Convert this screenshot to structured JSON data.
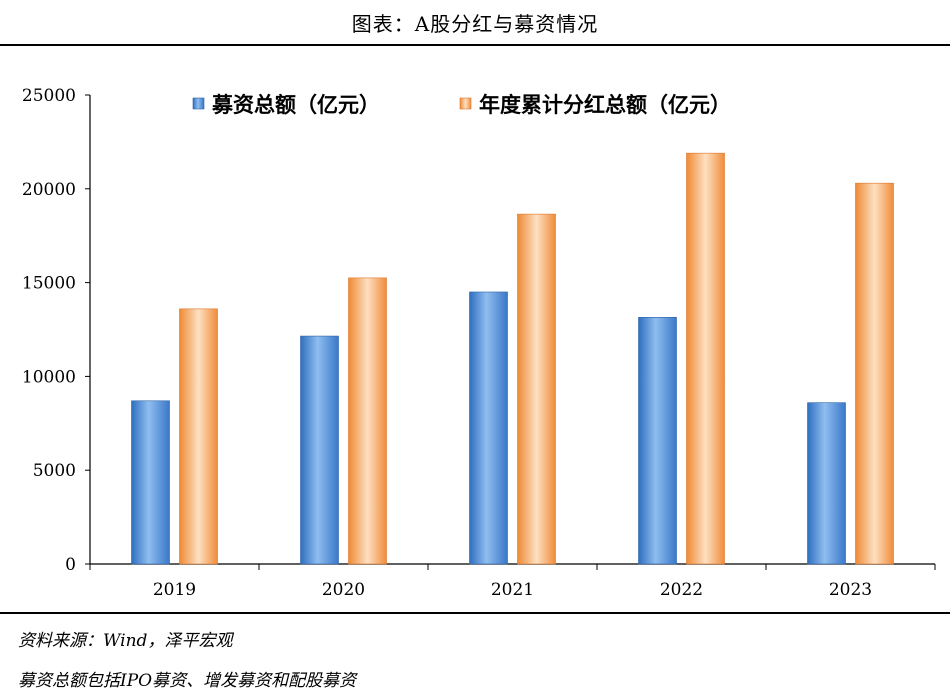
{
  "header": {
    "title": "图表：A股分红与募资情况"
  },
  "footer": {
    "source": "资料来源：Wind，泽平宏观",
    "note": "募资总额包括IPO募资、增发募资和配股募资"
  },
  "colors": {
    "series_blue": "#4f8fd8",
    "series_orange": "#f4a25a"
  },
  "chart_data": {
    "type": "bar",
    "categories": [
      "2019",
      "2020",
      "2021",
      "2022",
      "2023"
    ],
    "series": [
      {
        "name": "募资总额（亿元）",
        "values": [
          8700,
          12150,
          14500,
          13150,
          8600
        ]
      },
      {
        "name": "年度累计分红总额（亿元）",
        "values": [
          13600,
          15250,
          18650,
          21900,
          20300
        ]
      }
    ],
    "ylim": [
      0,
      25000
    ],
    "yticks": [
      0,
      5000,
      10000,
      15000,
      20000,
      25000
    ],
    "grid": false,
    "legend": "top"
  }
}
